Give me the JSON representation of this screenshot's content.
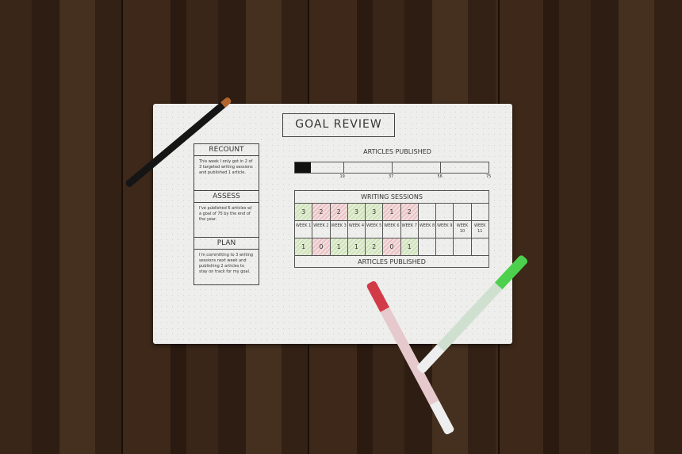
{
  "notebook": {
    "title": "GOAL REVIEW",
    "sections": [
      {
        "heading": "RECOUNT",
        "text": "This week I only got in 2 of 3 targeted writing sessions and published 1 article."
      },
      {
        "heading": "ASSESS",
        "text": "I've published 6 articles w/ a goal of 75 by the end of the year."
      },
      {
        "heading": "PLAN",
        "text": "I'm committing to 3 writing sessions next week and publishing 2 articles to stay on track for my goal."
      }
    ],
    "progress": {
      "title": "ARTICLES PUBLISHED",
      "value": 6,
      "goal": 75,
      "ticks": [
        "19",
        "37",
        "56",
        "75"
      ]
    },
    "table": {
      "title": "WRITING SESSIONS",
      "footer": "ARTICLES PUBLISHED",
      "weeks": [
        "WEEK 1",
        "WEEK 2",
        "WEEK 3",
        "WEEK 4",
        "WEEK 5",
        "WEEK 6",
        "WEEK 7",
        "WEEK 8",
        "WEEK 9",
        "WEEK 10",
        "WEEK 11"
      ],
      "sessions": [
        "3",
        "2",
        "2",
        "3",
        "3",
        "1",
        "2",
        "",
        "",
        "",
        ""
      ],
      "session_status": [
        "g",
        "r",
        "r",
        "g",
        "g",
        "r",
        "r",
        "",
        "",
        "",
        ""
      ],
      "articles": [
        "1",
        "0",
        "1",
        "1",
        "2",
        "0",
        "1",
        "",
        "",
        "",
        ""
      ],
      "article_status": [
        "g",
        "r",
        "g",
        "g",
        "g",
        "r",
        "g",
        "",
        "",
        "",
        ""
      ]
    }
  },
  "colors": {
    "met": "#cfe3b8",
    "missed": "#ecc2c4",
    "wood": "#3a2618"
  }
}
